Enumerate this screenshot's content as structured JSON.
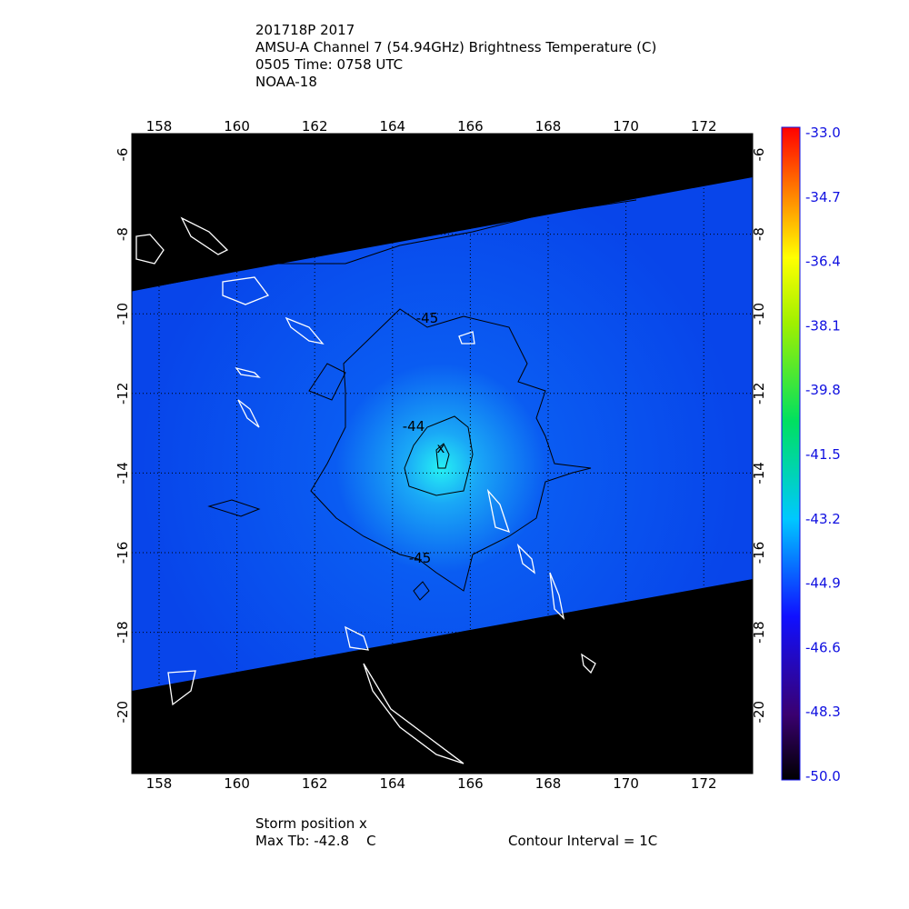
{
  "header": {
    "lines": [
      "201718P 2017",
      "AMSU-A Channel 7 (54.94GHz) Brightness Temperature (C)",
      "0505 Time: 0758 UTC",
      "NOAA-18"
    ]
  },
  "map": {
    "lon_labels": [
      "158",
      "160",
      "162",
      "164",
      "166",
      "168",
      "170",
      "172"
    ],
    "lat_labels": [
      "-6",
      "-8",
      "-10",
      "-12",
      "-14",
      "-16",
      "-18",
      "-20"
    ],
    "contour_labels": [
      "-45",
      "-44",
      "-45"
    ],
    "storm_marker": "x"
  },
  "colorbar": {
    "labels": [
      "-33.0",
      "-34.7",
      "-36.4",
      "-38.1",
      "-39.8",
      "-41.5",
      "-43.2",
      "-44.9",
      "-46.6",
      "-48.3",
      "-50.0"
    ]
  },
  "footer": {
    "storm_position": "Storm position x",
    "max_tb": "Max Tb: -42.8    C",
    "contour_interval": "Contour Interval = 1C"
  }
}
